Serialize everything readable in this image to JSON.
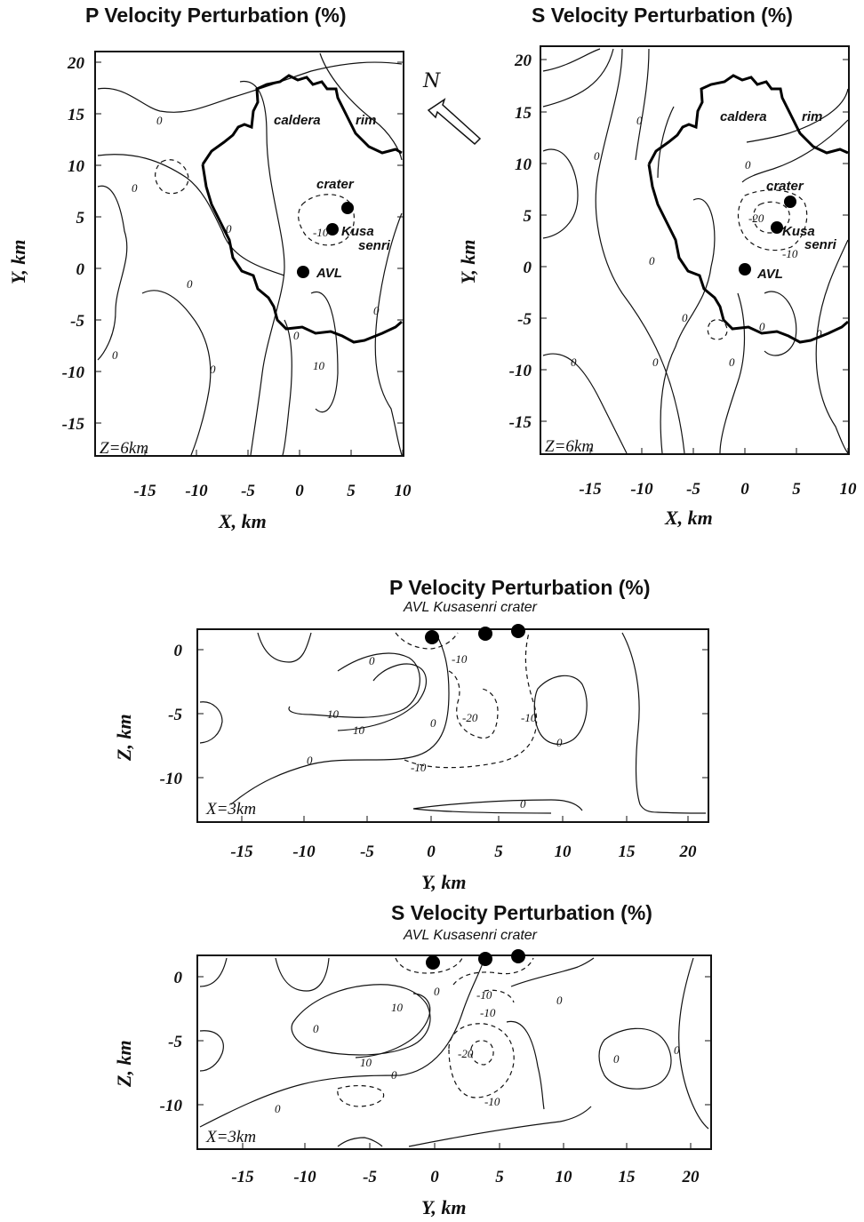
{
  "chart_data": [
    {
      "id": "p_map",
      "type": "contour",
      "title": "P Velocity Perturbation (%)",
      "xlabel": "X, km",
      "ylabel": "Y, km",
      "xlim": [
        -20,
        11
      ],
      "ylim": [
        -18,
        21
      ],
      "xticks": [
        -15,
        -10,
        -5,
        0,
        5,
        10
      ],
      "yticks": [
        20,
        15,
        10,
        5,
        0,
        -5,
        -10,
        -15
      ],
      "slice_label": "Z=6km",
      "contour_levels": [
        "0",
        "0",
        "0",
        "0",
        "0",
        "0",
        "0",
        "0",
        "-10",
        "10"
      ],
      "annotations": [
        "caldera",
        "rim",
        "crater",
        "Kusa",
        "senri",
        "AVL"
      ],
      "points": [
        {
          "name": "crater",
          "x": 5,
          "y": 6
        },
        {
          "name": "Kusasenri",
          "x": 3.5,
          "y": 3.8
        },
        {
          "name": "AVL",
          "x": 0.5,
          "y": -0.5
        }
      ],
      "north_label": "N"
    },
    {
      "id": "s_map",
      "type": "contour",
      "title": "S Velocity Perturbation (%)",
      "xlabel": "X, km",
      "ylabel": "Y, km",
      "xlim": [
        -20,
        11
      ],
      "ylim": [
        -18,
        21
      ],
      "xticks": [
        -15,
        -10,
        -5,
        0,
        5,
        10
      ],
      "yticks": [
        20,
        15,
        10,
        5,
        0,
        -5,
        -10,
        -15
      ],
      "slice_label": "Z=6km",
      "contour_levels": [
        "0",
        "0",
        "0",
        "0",
        "0",
        "0",
        "0",
        "0",
        "0",
        "0",
        "-20",
        "-10"
      ],
      "annotations": [
        "caldera",
        "rim",
        "crater",
        "Kusa",
        "senri",
        "AVL"
      ],
      "points": [
        {
          "name": "crater",
          "x": 4.5,
          "y": 6.3
        },
        {
          "name": "Kusasenri",
          "x": 3.2,
          "y": 3.8
        },
        {
          "name": "AVL",
          "x": 0,
          "y": -0.5
        }
      ]
    },
    {
      "id": "p_section",
      "type": "contour",
      "title": "P Velocity Perturbation (%)",
      "xlabel": "Y, km",
      "ylabel": "Z, km",
      "xlim": [
        -19,
        22
      ],
      "ylim": [
        -13.5,
        2
      ],
      "xticks": [
        -15,
        -10,
        -5,
        0,
        5,
        10,
        15,
        20
      ],
      "yticks": [
        0,
        -5,
        -10
      ],
      "slice_label": "X=3km",
      "stations": "AVL  Kusasenri  crater",
      "contour_levels": [
        "-10",
        "0",
        "10",
        "10",
        "0",
        "-20",
        "-10",
        "-10",
        "0",
        "0",
        "0"
      ],
      "points": [
        {
          "name": "AVL",
          "x": 0,
          "y": 1
        },
        {
          "name": "Kusasenri",
          "x": 4.2,
          "y": 1.2
        },
        {
          "name": "crater",
          "x": 6.7,
          "y": 1.4
        }
      ]
    },
    {
      "id": "s_section",
      "type": "contour",
      "title": "S Velocity Perturbation (%)",
      "xlabel": "Y, km",
      "ylabel": "Z, km",
      "xlim": [
        -19,
        22
      ],
      "ylim": [
        -13.5,
        2
      ],
      "xticks": [
        -15,
        -10,
        -5,
        0,
        5,
        10,
        15,
        20
      ],
      "yticks": [
        0,
        -5,
        -10
      ],
      "slice_label": "X=3km",
      "stations": "AVL  Kusasenri  crater",
      "contour_levels": [
        "0",
        "-10",
        "-10",
        "0",
        "10",
        "10",
        "0",
        "-20",
        "-10",
        "0",
        "0",
        "0",
        "0"
      ],
      "points": [
        {
          "name": "AVL",
          "x": -0.2,
          "y": 1
        },
        {
          "name": "Kusasenri",
          "x": 4,
          "y": 1.3
        },
        {
          "name": "crater",
          "x": 6.5,
          "y": 1.5
        }
      ]
    }
  ]
}
